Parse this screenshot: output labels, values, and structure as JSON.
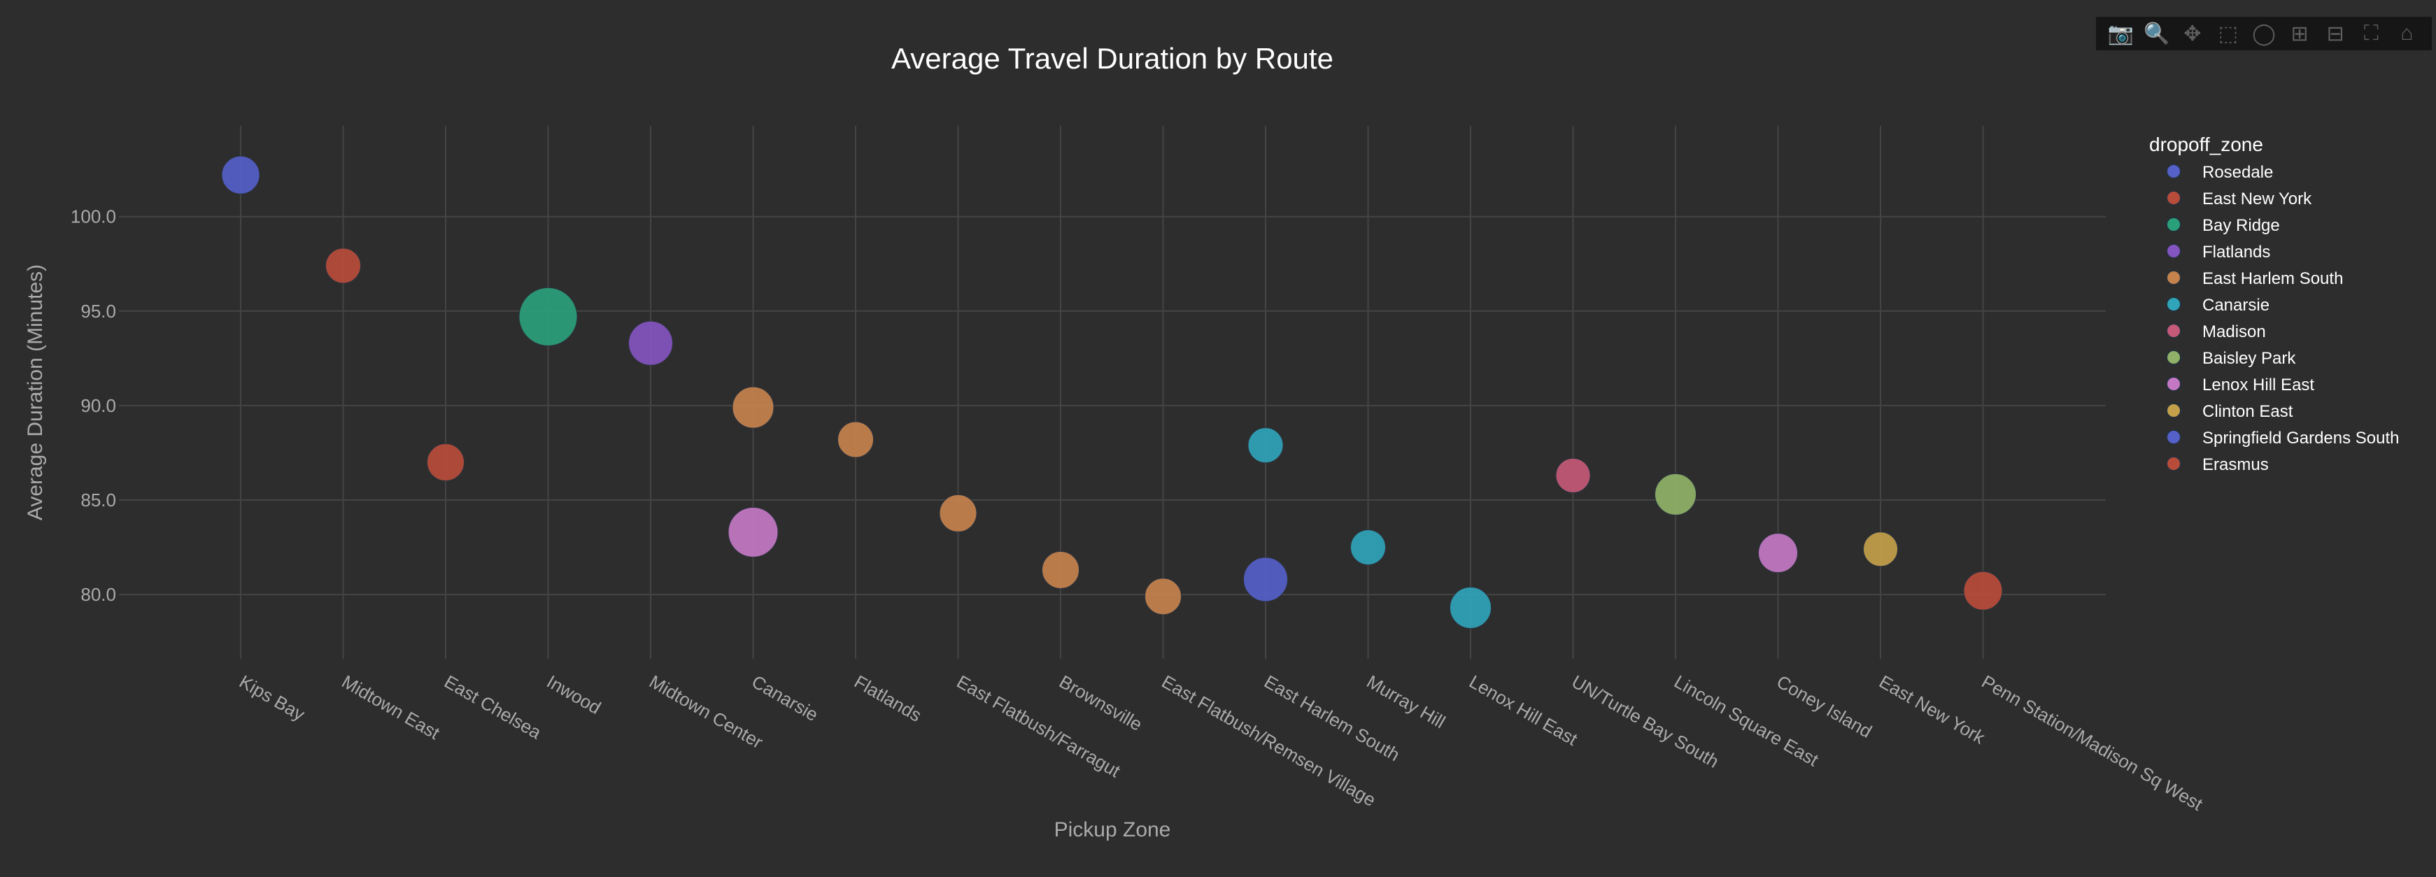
{
  "chart_data": {
    "type": "scatter",
    "title": "Average Travel Duration by Route",
    "xlabel": "Pickup Zone",
    "ylabel": "Average Duration (Minutes)",
    "ylim": [
      76.6,
      104.8
    ],
    "yticks": [
      "80.0",
      "85.0",
      "90.0",
      "95.0",
      "100.0"
    ],
    "ytick_values": [
      80,
      85,
      90,
      95,
      100
    ],
    "grid": true,
    "legend_title": "dropoff_zone",
    "legend_placement": "right",
    "categories": [
      "Kips Bay",
      "Midtown East",
      "East Chelsea",
      "Inwood",
      "Midtown Center",
      "Canarsie",
      "Flatlands",
      "East Flatbush/Farragut",
      "Brownsville",
      "East Flatbush/Remsen Village",
      "East Harlem South",
      "Murray Hill",
      "Lenox Hill East",
      "UN/Turtle Bay South",
      "Lincoln Square East",
      "Coney Island",
      "East New York",
      "Penn Station/Madison Sq West"
    ],
    "series": [
      {
        "name": "Rosedale",
        "color": "#5560c8",
        "points": [
          {
            "x": "Kips Bay",
            "y": 102.2,
            "size": 54
          }
        ]
      },
      {
        "name": "East New York",
        "color": "#b84c3a",
        "points": [
          {
            "x": "Midtown East",
            "y": 97.4,
            "size": 50
          },
          {
            "x": "East Chelsea",
            "y": 87.0,
            "size": 53
          }
        ]
      },
      {
        "name": "Bay Ridge",
        "color": "#2aa07a",
        "points": [
          {
            "x": "Inwood",
            "y": 94.7,
            "size": 83
          }
        ]
      },
      {
        "name": "Flatlands",
        "color": "#8454c0",
        "points": [
          {
            "x": "Midtown Center",
            "y": 93.3,
            "size": 63
          }
        ]
      },
      {
        "name": "East Harlem South",
        "color": "#c5824c",
        "points": [
          {
            "x": "Canarsie",
            "y": 89.9,
            "size": 59
          },
          {
            "x": "Flatlands",
            "y": 88.2,
            "size": 51
          },
          {
            "x": "East Flatbush/Farragut",
            "y": 84.3,
            "size": 53
          },
          {
            "x": "Brownsville",
            "y": 81.3,
            "size": 53
          },
          {
            "x": "East Flatbush/Remsen Village",
            "y": 79.9,
            "size": 52
          }
        ]
      },
      {
        "name": "Canarsie",
        "color": "#30a4b8",
        "points": [
          {
            "x": "East Harlem South",
            "y": 87.9,
            "size": 50
          },
          {
            "x": "Murray Hill",
            "y": 82.5,
            "size": 50
          },
          {
            "x": "Lenox Hill East",
            "y": 79.3,
            "size": 59
          }
        ]
      },
      {
        "name": "Madison",
        "color": "#c45a78",
        "points": [
          {
            "x": "UN/Turtle Bay South",
            "y": 86.3,
            "size": 49
          }
        ]
      },
      {
        "name": "Baisley Park",
        "color": "#8fb268",
        "points": [
          {
            "x": "Lincoln Square East",
            "y": 85.3,
            "size": 59
          }
        ]
      },
      {
        "name": "Lenox Hill East",
        "color": "#c478c4",
        "points": [
          {
            "x": "Canarsie",
            "y": 83.3,
            "size": 71
          },
          {
            "x": "Coney Island",
            "y": 82.2,
            "size": 56
          }
        ]
      },
      {
        "name": "Clinton East",
        "color": "#c4a04a",
        "points": [
          {
            "x": "East New York",
            "y": 82.4,
            "size": 49
          }
        ]
      },
      {
        "name": "Springfield Gardens South",
        "color": "#5560c8",
        "points": [
          {
            "x": "East Harlem South",
            "y": 80.8,
            "size": 63
          }
        ]
      },
      {
        "name": "Erasmus",
        "color": "#b84c3a",
        "points": [
          {
            "x": "Penn Station/Madison Sq West",
            "y": 80.2,
            "size": 55
          }
        ]
      }
    ]
  },
  "modebar": {
    "buttons": [
      {
        "icon": "camera-icon",
        "glyph": "📷"
      },
      {
        "icon": "zoom-icon",
        "glyph": "🔍"
      },
      {
        "icon": "pan-icon",
        "glyph": "✥"
      },
      {
        "icon": "box-select-icon",
        "glyph": "⬚"
      },
      {
        "icon": "lasso-select-icon",
        "glyph": "◯"
      },
      {
        "icon": "zoom-in-icon",
        "glyph": "⊞"
      },
      {
        "icon": "zoom-out-icon",
        "glyph": "⊟"
      },
      {
        "icon": "autoscale-icon",
        "glyph": "⛶"
      },
      {
        "icon": "reset-axes-icon",
        "glyph": "⌂"
      }
    ]
  },
  "colors": {
    "background": "#2d2d2d",
    "grid": "#444444",
    "tick_text": "#aaaaaa",
    "title_text": "#ffffff"
  }
}
